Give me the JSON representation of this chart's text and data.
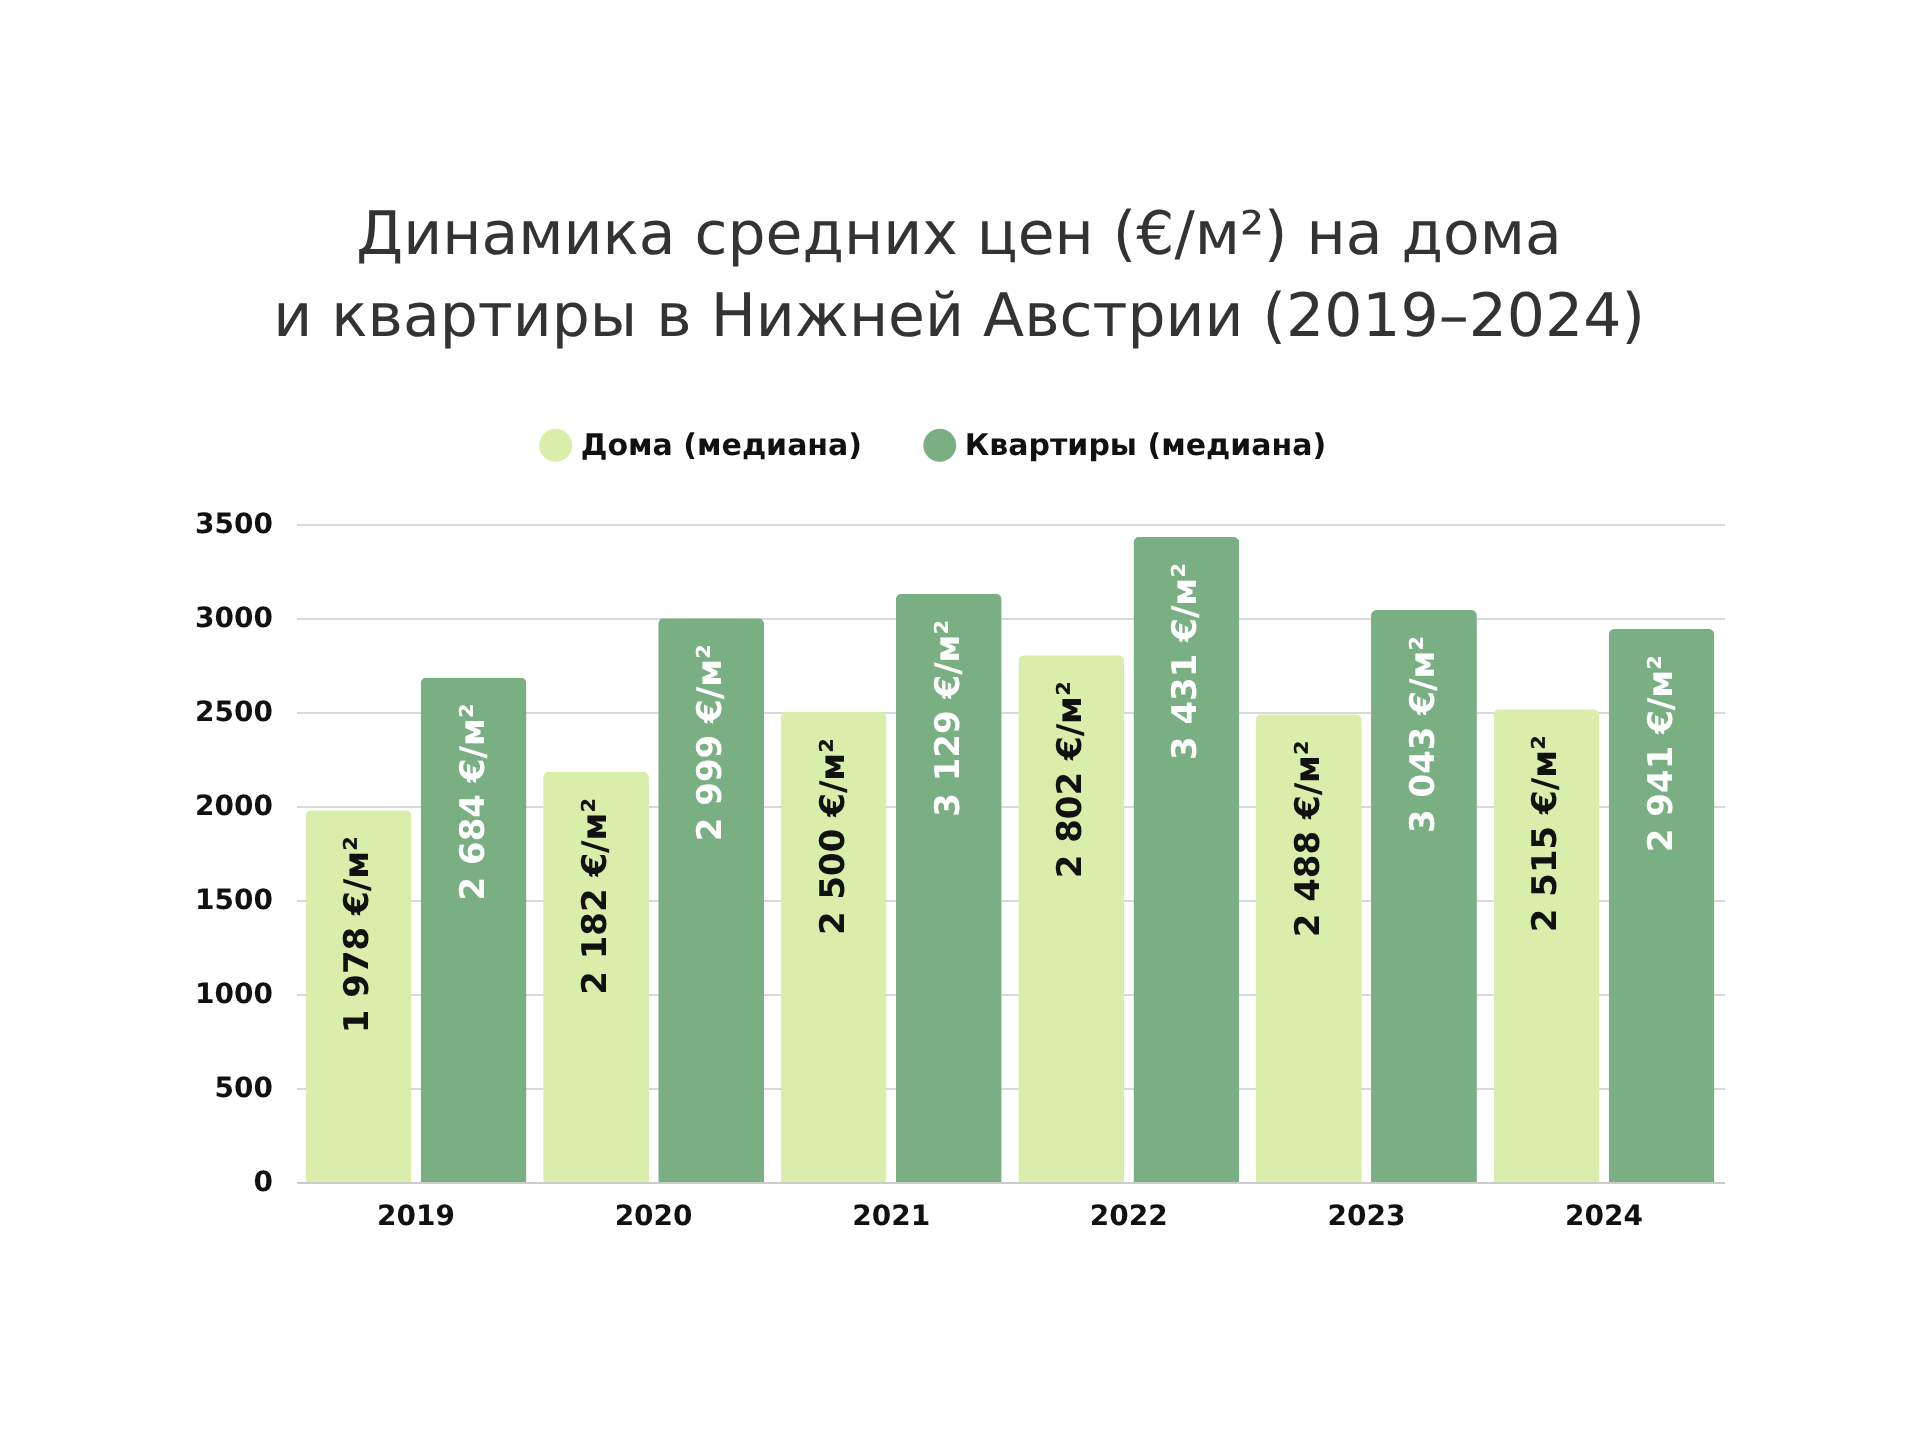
{
  "chart_data": {
    "type": "bar",
    "title": "Динамика средних цен (€/м²) на дома\nи квартиры в Нижней Австрии (2019–2024)",
    "categories": [
      "2019",
      "2020",
      "2021",
      "2022",
      "2023",
      "2024"
    ],
    "series": [
      {
        "name": "Дома (медиана)",
        "color": "#d8eeaa",
        "values": [
          1978,
          2182,
          2500,
          2802,
          2488,
          2515
        ],
        "value_labels": [
          "1 978 €/м²",
          "2 182 €/м²",
          "2 500 €/м²",
          "2 802 €/м²",
          "2 488 €/м²",
          "2 515 €/м²"
        ]
      },
      {
        "name": "Квартиры (медиана)",
        "color": "#7aaf84",
        "values": [
          2684,
          2999,
          3129,
          3431,
          3043,
          2941
        ],
        "value_labels": [
          "2 684 €/м²",
          "2 999 €/м²",
          "3 129 €/м²",
          "3 431 €/м²",
          "3 043 €/м²",
          "2 941 €/м²"
        ]
      }
    ],
    "ylim": [
      0,
      3500
    ],
    "yticks": [
      0,
      500,
      1000,
      1500,
      2000,
      2500,
      3000,
      3500
    ],
    "grid": "y",
    "legend": "top"
  }
}
